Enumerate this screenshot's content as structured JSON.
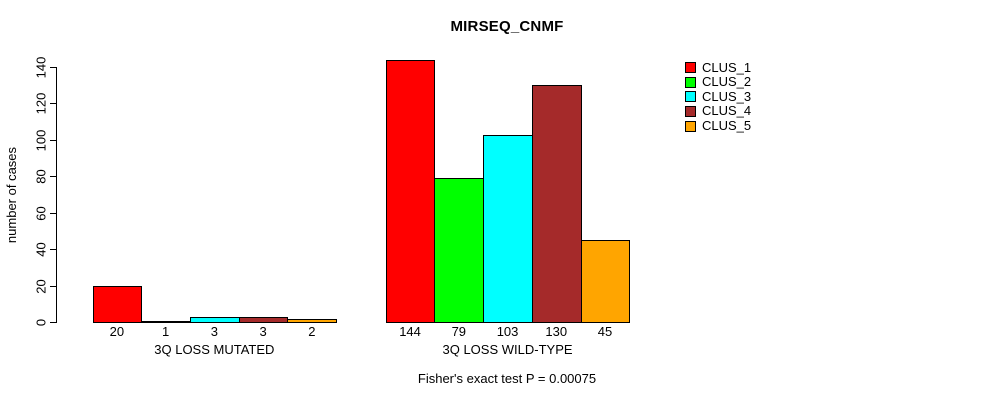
{
  "chart_data": {
    "type": "bar",
    "title": "MIRSEQ_CNMF",
    "ylabel": "number of cases",
    "xlabel": "",
    "ylim": [
      0,
      140
    ],
    "yticks": [
      0,
      20,
      40,
      60,
      80,
      100,
      120,
      140
    ],
    "grid": false,
    "categories": [
      "3Q LOSS MUTATED",
      "3Q LOSS WILD-TYPE"
    ],
    "series": [
      {
        "name": "CLUS_1",
        "color": "#FF0000",
        "values": [
          20,
          144
        ]
      },
      {
        "name": "CLUS_2",
        "color": "#00FF00",
        "values": [
          1,
          79
        ]
      },
      {
        "name": "CLUS_3",
        "color": "#00FFFF",
        "values": [
          3,
          103
        ]
      },
      {
        "name": "CLUS_4",
        "color": "#A52A2A",
        "values": [
          3,
          130
        ]
      },
      {
        "name": "CLUS_5",
        "color": "#FFA500",
        "values": [
          2,
          45
        ]
      }
    ],
    "bar_value_labels": [
      [
        20,
        1,
        3,
        3,
        2
      ],
      [
        144,
        79,
        103,
        130,
        45
      ]
    ],
    "legend": {
      "position": "right",
      "entries": [
        "CLUS_1",
        "CLUS_2",
        "CLUS_3",
        "CLUS_4",
        "CLUS_5"
      ]
    },
    "annotation": "Fisher's exact test P = 0.00075"
  },
  "colors": {
    "background": "#FFFFFF",
    "axis": "#000000",
    "text": "#000000",
    "bar_border": "#000000",
    "clus_1": "#FF0000",
    "clus_2": "#00FF00",
    "clus_3": "#00FFFF",
    "clus_4": "#A52A2A",
    "clus_5": "#FFA500"
  }
}
